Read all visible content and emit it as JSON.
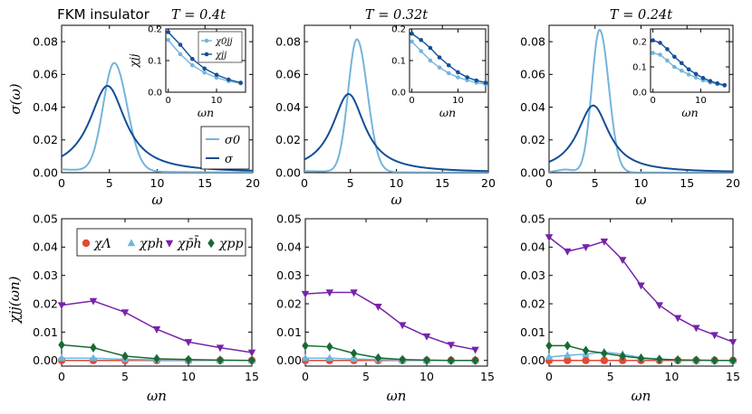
{
  "colors": {
    "light": "#74b4dc",
    "dark": "#124e96",
    "red": "#e24a33",
    "cyan": "#6bb8dd",
    "purple": "#7623aa",
    "green": "#186a33"
  },
  "chart_data": [
    {
      "id": "panel-top-1",
      "type": "line",
      "title_text": "FKM insulator",
      "title_math": "T = 0.4t",
      "xlabel": "ω",
      "ylabel": "σ(ω)",
      "xlim": [
        0,
        20
      ],
      "ylim": [
        0,
        0.09
      ],
      "xticks": [
        "0",
        "5",
        "10",
        "15",
        "20"
      ],
      "yticks": [
        "0.00",
        "0.02",
        "0.04",
        "0.06",
        "0.08"
      ],
      "legend": [
        "σ0",
        "σ"
      ],
      "series": [
        {
          "name": "σ0",
          "color": "light",
          "shape": {
            "center": 5.5,
            "peak": 0.066,
            "width_left": 1.15,
            "width_right": 1.35,
            "floor": 0.002
          }
        },
        {
          "name": "σ",
          "color": "dark",
          "shape": {
            "center": 4.8,
            "peak": 0.053,
            "hwhm": 2.3
          }
        }
      ],
      "inset": {
        "xlabel": "ωn",
        "ylabel": "χjj",
        "xlim": [
          -0.5,
          16
        ],
        "ylim": [
          0,
          0.2
        ],
        "xticks": [
          "0",
          "10"
        ],
        "yticks": [
          "0.0",
          "0.1",
          "0.2"
        ],
        "legend": [
          "χ0jj",
          "χjj"
        ],
        "series": [
          {
            "name": "χ0jj",
            "color": "light",
            "x": [
              0,
              2.5,
              5,
              7.5,
              10,
              12.5,
              15
            ],
            "y": [
              0.165,
              0.12,
              0.085,
              0.062,
              0.046,
              0.035,
              0.028
            ]
          },
          {
            "name": "χjj",
            "color": "dark",
            "x": [
              0,
              2.5,
              5,
              7.5,
              10,
              12.5,
              15
            ],
            "y": [
              0.19,
              0.15,
              0.105,
              0.075,
              0.055,
              0.04,
              0.03
            ]
          }
        ]
      }
    },
    {
      "id": "panel-top-2",
      "type": "line",
      "title_text": "",
      "title_math": "T = 0.32t",
      "xlabel": "ω",
      "ylabel": "",
      "xlim": [
        0,
        20
      ],
      "ylim": [
        0,
        0.09
      ],
      "xticks": [
        "0",
        "5",
        "10",
        "15",
        "20"
      ],
      "yticks": [
        "0.00",
        "0.02",
        "0.04",
        "0.06",
        "0.08"
      ],
      "series": [
        {
          "name": "σ0",
          "color": "light",
          "shape": {
            "center": 5.7,
            "peak": 0.081,
            "width_left": 0.95,
            "width_right": 1.15,
            "floor": 0.001
          }
        },
        {
          "name": "σ",
          "color": "dark",
          "shape": {
            "center": 4.8,
            "peak": 0.048,
            "hwhm": 2.15
          }
        }
      ],
      "inset": {
        "xlabel": "ωn",
        "ylabel": "",
        "xlim": [
          -0.5,
          16
        ],
        "ylim": [
          0,
          0.2
        ],
        "xticks": [
          "0",
          "10"
        ],
        "yticks": [
          "0.0",
          "0.1",
          "0.2"
        ],
        "series": [
          {
            "name": "χ0jj",
            "color": "light",
            "x": [
              0,
              2,
              4,
              6,
              8,
              10,
              12,
              14,
              16
            ],
            "y": [
              0.16,
              0.13,
              0.1,
              0.078,
              0.06,
              0.047,
              0.038,
              0.03,
              0.025
            ]
          },
          {
            "name": "χjj",
            "color": "dark",
            "x": [
              0,
              2,
              4,
              6,
              8,
              10,
              12,
              14,
              16
            ],
            "y": [
              0.185,
              0.165,
              0.14,
              0.11,
              0.085,
              0.063,
              0.047,
              0.037,
              0.03
            ]
          }
        ]
      }
    },
    {
      "id": "panel-top-3",
      "type": "line",
      "title_text": "",
      "title_math": "T = 0.24t",
      "xlabel": "ω",
      "ylabel": "",
      "xlim": [
        0,
        20
      ],
      "ylim": [
        0,
        0.09
      ],
      "xticks": [
        "0",
        "5",
        "10",
        "15",
        "20"
      ],
      "yticks": [
        "0.00",
        "0.02",
        "0.04",
        "0.06",
        "0.08"
      ],
      "series": [
        {
          "name": "σ0",
          "color": "light",
          "shape": {
            "center": 5.5,
            "peak": 0.087,
            "width_left": 0.85,
            "width_right": 1.0,
            "floor": 0.0005,
            "bump": 0.0015
          }
        },
        {
          "name": "σ",
          "color": "dark",
          "shape": {
            "center": 4.8,
            "peak": 0.041,
            "hwhm": 2.1
          }
        }
      ],
      "inset": {
        "xlabel": "ωn",
        "ylabel": "",
        "xlim": [
          -0.5,
          16
        ],
        "ylim": [
          0,
          0.25
        ],
        "xticks": [
          "0",
          "10"
        ],
        "yticks": [
          "0.0",
          "0.1",
          "0.2"
        ],
        "series": [
          {
            "name": "χ0jj",
            "color": "light",
            "x": [
              0,
              1.5,
              3,
              4.5,
              6,
              7.5,
              9,
              10.5,
              12,
              13.5,
              15
            ],
            "y": [
              0.155,
              0.148,
              0.125,
              0.1,
              0.085,
              0.07,
              0.058,
              0.047,
              0.038,
              0.032,
              0.026
            ]
          },
          {
            "name": "χjj",
            "color": "dark",
            "x": [
              0,
              1.5,
              3,
              4.5,
              6,
              7.5,
              9,
              10.5,
              12,
              13.5,
              15
            ],
            "y": [
              0.205,
              0.195,
              0.17,
              0.14,
              0.115,
              0.09,
              0.072,
              0.056,
              0.044,
              0.035,
              0.028
            ]
          }
        ]
      }
    },
    {
      "id": "panel-bottom-1",
      "type": "line",
      "xlabel": "ωn",
      "ylabel": "χjj(ωn)",
      "xlim": [
        0,
        15
      ],
      "ylim": [
        -0.002,
        0.05
      ],
      "xticks": [
        "0",
        "5",
        "10",
        "15"
      ],
      "yticks": [
        "0.00",
        "0.01",
        "0.02",
        "0.03",
        "0.04",
        "0.05"
      ],
      "legend": [
        "χΛ",
        "χph",
        "χp̄h̄",
        "χpp"
      ],
      "series": [
        {
          "name": "χΛ",
          "color": "red",
          "marker": "circle",
          "x": [
            0,
            2.5,
            5,
            7.5,
            10,
            12.5,
            15
          ],
          "y": [
            0,
            0,
            0,
            0,
            0,
            0,
            0
          ]
        },
        {
          "name": "χph",
          "color": "cyan",
          "marker": "triangle-up",
          "x": [
            0,
            2.5,
            5,
            7.5,
            10,
            12.5,
            15
          ],
          "y": [
            0.0008,
            0.0008,
            0.0004,
            0.0002,
            0.0001,
            0,
            0
          ]
        },
        {
          "name": "χp̄h̄",
          "color": "purple",
          "marker": "triangle-down",
          "x": [
            0,
            2.5,
            5,
            7.5,
            10,
            12.5,
            15
          ],
          "y": [
            0.0195,
            0.021,
            0.017,
            0.011,
            0.0065,
            0.0045,
            0.0028
          ]
        },
        {
          "name": "χpp",
          "color": "green",
          "marker": "diamond",
          "x": [
            0,
            2.5,
            5,
            7.5,
            10,
            12.5,
            15
          ],
          "y": [
            0.0055,
            0.0045,
            0.0015,
            0.0006,
            0.0003,
            0.0001,
            0
          ]
        }
      ]
    },
    {
      "id": "panel-bottom-2",
      "type": "line",
      "xlabel": "ωn",
      "ylabel": "",
      "xlim": [
        0,
        15
      ],
      "ylim": [
        -0.002,
        0.05
      ],
      "xticks": [
        "0",
        "5",
        "10",
        "15"
      ],
      "yticks": [
        "0.00",
        "0.01",
        "0.02",
        "0.03",
        "0.04",
        "0.05"
      ],
      "series": [
        {
          "name": "χΛ",
          "color": "red",
          "marker": "circle",
          "x": [
            0,
            2,
            4,
            6,
            8,
            10,
            12,
            14
          ],
          "y": [
            0,
            0,
            0,
            0,
            0,
            0,
            0,
            0
          ]
        },
        {
          "name": "χph",
          "color": "cyan",
          "marker": "triangle-up",
          "x": [
            0,
            2,
            4,
            6,
            8,
            10,
            12,
            14
          ],
          "y": [
            0.0008,
            0.0008,
            0.0005,
            0.0003,
            0.0001,
            0,
            0,
            0
          ]
        },
        {
          "name": "χp̄h̄",
          "color": "purple",
          "marker": "triangle-down",
          "x": [
            0,
            2,
            4,
            6,
            8,
            10,
            12,
            14
          ],
          "y": [
            0.0235,
            0.024,
            0.024,
            0.019,
            0.0125,
            0.0085,
            0.0055,
            0.0038
          ]
        },
        {
          "name": "χpp",
          "color": "green",
          "marker": "diamond",
          "x": [
            0,
            2,
            4,
            6,
            8,
            10,
            12,
            14
          ],
          "y": [
            0.0052,
            0.0048,
            0.0025,
            0.0009,
            0.0003,
            0.0001,
            0,
            0
          ]
        }
      ]
    },
    {
      "id": "panel-bottom-3",
      "type": "line",
      "xlabel": "ωn",
      "ylabel": "",
      "xlim": [
        0,
        15
      ],
      "ylim": [
        -0.002,
        0.05
      ],
      "xticks": [
        "0",
        "5",
        "10",
        "15"
      ],
      "yticks": [
        "0.00",
        "0.01",
        "0.02",
        "0.03",
        "0.04",
        "0.05"
      ],
      "series": [
        {
          "name": "χΛ",
          "color": "red",
          "marker": "circle",
          "x": [
            0,
            1.5,
            3,
            4.5,
            6,
            7.5,
            9,
            10.5,
            12,
            13.5,
            15
          ],
          "y": [
            0,
            0,
            0,
            0,
            0,
            0,
            0,
            0,
            0,
            0,
            0
          ]
        },
        {
          "name": "χph",
          "color": "cyan",
          "marker": "triangle-up",
          "x": [
            0,
            1.5,
            3,
            4.5,
            6,
            7.5,
            9,
            10.5,
            12,
            13.5,
            15
          ],
          "y": [
            0.0012,
            0.0018,
            0.0022,
            0.003,
            0.0022,
            0.001,
            0.0005,
            0.0002,
            0.0001,
            0,
            0
          ]
        },
        {
          "name": "χp̄h̄",
          "color": "purple",
          "marker": "triangle-down",
          "x": [
            0,
            1.5,
            3,
            4.5,
            6,
            7.5,
            9,
            10.5,
            12,
            13.5,
            15
          ],
          "y": [
            0.0435,
            0.0385,
            0.04,
            0.042,
            0.0355,
            0.0265,
            0.0195,
            0.015,
            0.0115,
            0.009,
            0.0065
          ]
        },
        {
          "name": "χpp",
          "color": "green",
          "marker": "diamond",
          "x": [
            0,
            1.5,
            3,
            4.5,
            6,
            7.5,
            9,
            10.5,
            12,
            13.5,
            15
          ],
          "y": [
            0.0052,
            0.0052,
            0.0035,
            0.0025,
            0.0015,
            0.0008,
            0.0004,
            0.0002,
            0.0001,
            0,
            0
          ]
        }
      ]
    }
  ]
}
